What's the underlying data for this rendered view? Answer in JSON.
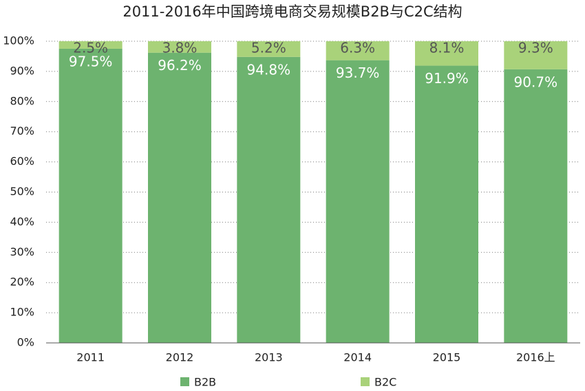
{
  "chart_data": {
    "type": "stacked_bar",
    "title": "2011-2016年中国跨境电商交易规模B2B与C2C结构",
    "categories": [
      "2011",
      "2012",
      "2013",
      "2014",
      "2015",
      "2016上"
    ],
    "series": [
      {
        "name": "B2B",
        "color": "#6db36f",
        "values": [
          97.5,
          96.2,
          94.8,
          93.7,
          91.9,
          90.7
        ],
        "value_labels": [
          "97.5%",
          "96.2%",
          "94.8%",
          "93.7%",
          "91.9%",
          "90.7%"
        ]
      },
      {
        "name": "B2C",
        "color": "#a9d27a",
        "values": [
          2.5,
          3.8,
          5.2,
          6.3,
          8.1,
          9.3
        ],
        "value_labels": [
          "2.5%",
          "3.8%",
          "5.2%",
          "6.3%",
          "8.1%",
          "9.3%"
        ]
      }
    ],
    "ylim": [
      0,
      100
    ],
    "yticks": [
      {
        "value": 0,
        "label": "0%"
      },
      {
        "value": 10,
        "label": "10%"
      },
      {
        "value": 20,
        "label": "20%"
      },
      {
        "value": 30,
        "label": "30%"
      },
      {
        "value": 40,
        "label": "40%"
      },
      {
        "value": 50,
        "label": "50%"
      },
      {
        "value": 60,
        "label": "60%"
      },
      {
        "value": 70,
        "label": "70%"
      },
      {
        "value": 80,
        "label": "80%"
      },
      {
        "value": 90,
        "label": "90%"
      },
      {
        "value": 100,
        "label": "100%"
      }
    ],
    "grid": true
  }
}
